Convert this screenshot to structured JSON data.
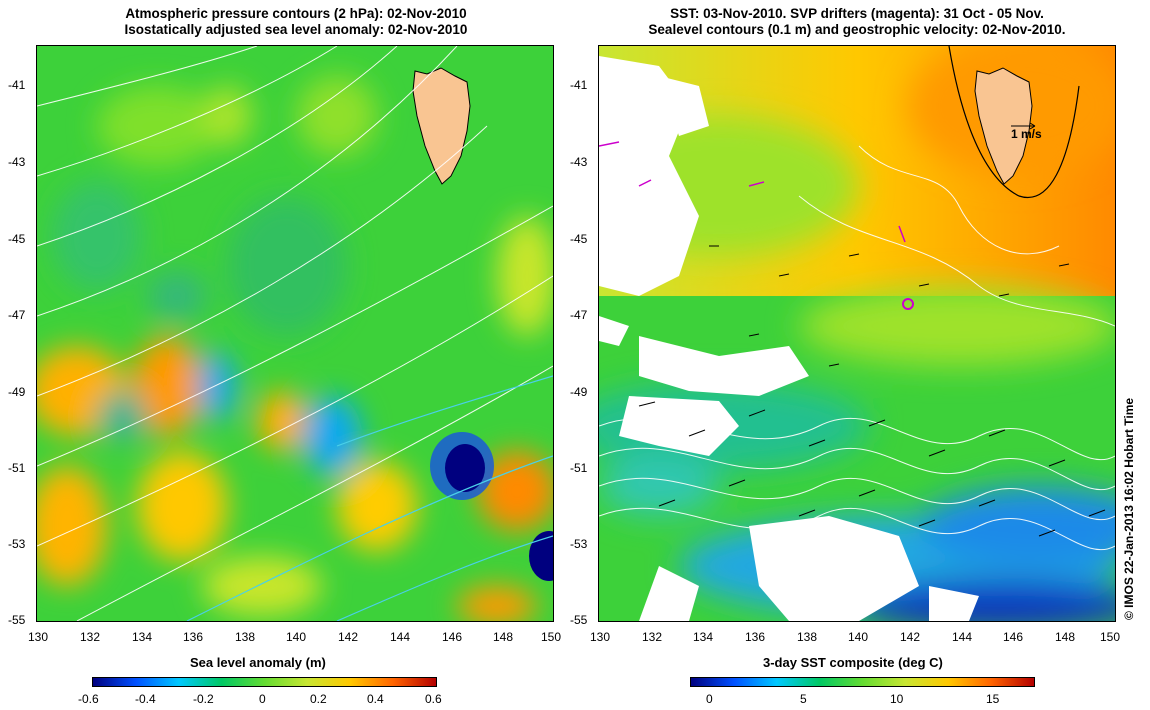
{
  "left_panel": {
    "title_line1": "Atmospheric pressure contours (2 hPa): 02-Nov-2010",
    "title_line2": "Isostatically adjusted sea level anomaly: 02-Nov-2010",
    "colorbar_title": "Sea level anomaly (m)",
    "colorbar_ticks": [
      "-0.6",
      "-0.4",
      "-0.2",
      "0",
      "0.2",
      "0.4",
      "0.6"
    ]
  },
  "right_panel": {
    "title_line1": "SST: 03-Nov-2010. SVP drifters (magenta): 31 Oct - 05 Nov.",
    "title_line2": "Sealevel contours (0.1 m) and geostrophic velocity: 02-Nov-2010.",
    "colorbar_title": "3-day SST composite (deg C)",
    "colorbar_ticks": [
      "0",
      "5",
      "10",
      "15"
    ],
    "velocity_scale_label": "1 m/s"
  },
  "axes": {
    "lat_ticks": [
      "-41",
      "-43",
      "-45",
      "-47",
      "-49",
      "-51",
      "-53",
      "-55"
    ],
    "lon_ticks": [
      "130",
      "132",
      "134",
      "136",
      "138",
      "140",
      "142",
      "144",
      "146",
      "148",
      "150"
    ]
  },
  "credit": "© IMOS 22-Jan-2013 16:02 Hobart Time",
  "colors": {
    "land": "#f9c592",
    "slp_colormap": [
      "#00007f",
      "#0050ff",
      "#00c8ff",
      "#00c864",
      "#64dc32",
      "#c8e632",
      "#ffc800",
      "#ff6400",
      "#b40000"
    ],
    "sst_colormap": [
      "#00007f",
      "#0050ff",
      "#00c8ff",
      "#00c864",
      "#64dc32",
      "#c8e632",
      "#ffc800",
      "#ff6400",
      "#b40000"
    ],
    "drifter": "#cc00cc"
  }
}
